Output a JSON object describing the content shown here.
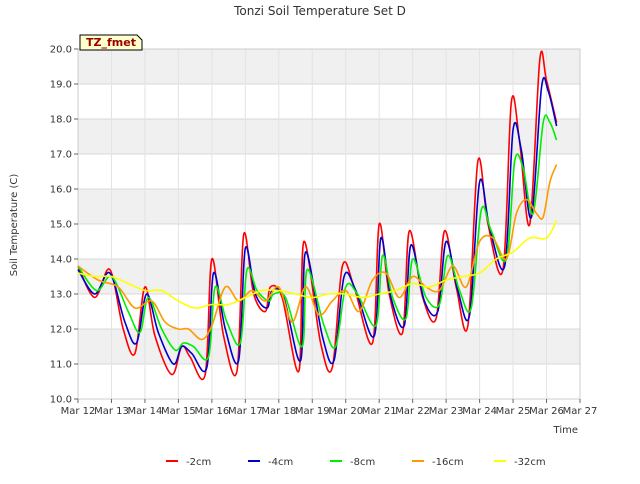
{
  "chart_data": {
    "type": "line",
    "title": "Tonzi Soil Temperature Set D",
    "xlabel": "Time",
    "ylabel": "Soil Temperature (C)",
    "badge": "TZ_fmet",
    "xlim": [
      12,
      27
    ],
    "ylim": [
      10.0,
      20.0
    ],
    "x_ticks": [
      12,
      13,
      14,
      15,
      16,
      17,
      18,
      19,
      20,
      21,
      22,
      23,
      24,
      25,
      26,
      27
    ],
    "x_tick_labels": [
      "Mar 12",
      "Mar 13",
      "Mar 14",
      "Mar 15",
      "Mar 16",
      "Mar 17",
      "Mar 18",
      "Mar 19",
      "Mar 20",
      "Mar 21",
      "Mar 22",
      "Mar 23",
      "Mar 24",
      "Mar 25",
      "Mar 26",
      "Mar 27"
    ],
    "y_ticks": [
      10.0,
      11.0,
      12.0,
      13.0,
      14.0,
      15.0,
      16.0,
      17.0,
      18.0,
      19.0,
      20.0
    ],
    "y_tick_labels": [
      "10.0",
      "11.0",
      "12.0",
      "13.0",
      "14.0",
      "15.0",
      "16.0",
      "17.0",
      "18.0",
      "19.0",
      "20.0"
    ],
    "grid": true,
    "band_shading": "alternating horizontal bands",
    "legend_position": "bottom",
    "series": [
      {
        "name": "-2cm",
        "color": "#ff0000",
        "x": [
          12.0,
          12.5,
          12.95,
          13.35,
          13.7,
          14.0,
          14.3,
          14.8,
          15.1,
          15.35,
          15.8,
          16.0,
          16.35,
          16.75,
          16.95,
          17.25,
          17.6,
          17.75,
          18.1,
          18.6,
          18.75,
          19.25,
          19.6,
          19.9,
          20.25,
          20.8,
          21.0,
          21.3,
          21.7,
          21.9,
          22.3,
          22.7,
          22.95,
          23.3,
          23.65,
          23.95,
          24.25,
          24.7,
          24.95,
          25.2,
          25.5,
          25.8,
          26.0,
          26.3
        ],
        "y": [
          13.8,
          12.9,
          13.7,
          12.0,
          11.3,
          13.2,
          11.8,
          10.7,
          11.5,
          11.2,
          10.7,
          14.0,
          11.8,
          10.8,
          14.7,
          13.0,
          12.5,
          13.2,
          12.9,
          10.8,
          14.5,
          11.6,
          10.9,
          13.8,
          13.2,
          11.6,
          15.0,
          13.0,
          11.9,
          14.8,
          12.9,
          12.3,
          14.8,
          13.2,
          12.1,
          16.8,
          15.0,
          13.7,
          18.5,
          17.3,
          15.0,
          19.7,
          19.1,
          17.9
        ]
      },
      {
        "name": "-4cm",
        "color": "#0000cc",
        "x": [
          12.0,
          12.5,
          12.95,
          13.4,
          13.75,
          14.05,
          14.4,
          14.85,
          15.1,
          15.4,
          15.85,
          16.05,
          16.4,
          16.8,
          17.0,
          17.3,
          17.65,
          17.8,
          18.15,
          18.65,
          18.8,
          19.3,
          19.65,
          19.95,
          20.3,
          20.85,
          21.05,
          21.35,
          21.75,
          21.95,
          22.35,
          22.75,
          23.0,
          23.35,
          23.7,
          24.0,
          24.3,
          24.75,
          25.0,
          25.25,
          25.55,
          25.85,
          26.05,
          26.3
        ],
        "y": [
          13.7,
          13.0,
          13.6,
          12.2,
          11.6,
          13.0,
          11.9,
          11.0,
          11.5,
          11.3,
          10.9,
          13.6,
          12.0,
          11.1,
          14.3,
          13.0,
          12.6,
          13.1,
          12.9,
          11.1,
          14.2,
          11.8,
          11.1,
          13.5,
          13.1,
          11.8,
          14.6,
          12.9,
          12.1,
          14.4,
          12.8,
          12.5,
          14.5,
          13.1,
          12.4,
          16.2,
          14.9,
          13.8,
          17.7,
          17.1,
          15.2,
          18.9,
          18.8,
          17.8
        ]
      },
      {
        "name": "-8cm",
        "color": "#00ee00",
        "x": [
          12.0,
          12.55,
          13.0,
          13.5,
          13.85,
          14.1,
          14.5,
          14.9,
          15.15,
          15.45,
          15.9,
          16.1,
          16.45,
          16.85,
          17.05,
          17.35,
          17.7,
          17.85,
          18.2,
          18.7,
          18.85,
          19.35,
          19.7,
          20.0,
          20.35,
          20.9,
          21.1,
          21.4,
          21.8,
          22.0,
          22.4,
          22.8,
          23.05,
          23.4,
          23.75,
          24.05,
          24.35,
          24.8,
          25.05,
          25.3,
          25.6,
          25.9,
          26.1,
          26.3
        ],
        "y": [
          13.8,
          13.1,
          13.5,
          12.5,
          11.9,
          12.9,
          12.0,
          11.4,
          11.6,
          11.5,
          11.2,
          13.2,
          12.2,
          11.6,
          13.7,
          13.1,
          12.8,
          13.0,
          12.9,
          11.5,
          13.7,
          12.1,
          11.5,
          13.2,
          13.0,
          12.1,
          14.1,
          12.9,
          12.3,
          14.0,
          12.9,
          12.7,
          14.1,
          13.1,
          12.6,
          15.4,
          14.8,
          14.0,
          16.8,
          16.6,
          15.3,
          17.9,
          17.9,
          17.4
        ]
      },
      {
        "name": "-16cm",
        "color": "#ff9900",
        "x": [
          12.0,
          12.6,
          13.2,
          13.7,
          14.2,
          14.6,
          15.0,
          15.3,
          15.7,
          16.0,
          16.4,
          16.8,
          17.2,
          17.6,
          18.0,
          18.4,
          18.8,
          19.2,
          19.6,
          20.0,
          20.4,
          20.8,
          21.2,
          21.6,
          22.0,
          22.4,
          22.8,
          23.2,
          23.6,
          24.0,
          24.4,
          24.8,
          25.1,
          25.4,
          25.7,
          25.9,
          26.1,
          26.3
        ],
        "y": [
          13.8,
          13.4,
          13.2,
          12.6,
          12.8,
          12.2,
          12.0,
          12.0,
          11.7,
          12.1,
          13.2,
          12.8,
          13.1,
          12.8,
          13.2,
          12.2,
          13.2,
          12.4,
          12.8,
          13.1,
          12.5,
          13.4,
          13.6,
          12.9,
          13.5,
          13.2,
          13.1,
          13.8,
          13.2,
          14.5,
          14.6,
          14.0,
          15.3,
          15.7,
          15.3,
          15.2,
          16.2,
          16.7
        ]
      },
      {
        "name": "-32cm",
        "color": "#ffff00",
        "x": [
          12.0,
          12.5,
          13.0,
          13.5,
          14.0,
          14.5,
          15.0,
          15.5,
          16.0,
          16.5,
          17.0,
          17.5,
          18.0,
          18.5,
          19.0,
          19.5,
          20.0,
          20.5,
          21.0,
          21.5,
          22.0,
          22.5,
          23.0,
          23.5,
          24.0,
          24.5,
          25.0,
          25.5,
          26.0,
          26.3
        ],
        "y": [
          13.6,
          13.5,
          13.5,
          13.3,
          13.1,
          13.1,
          12.8,
          12.6,
          12.7,
          12.7,
          12.9,
          13.1,
          13.1,
          13.0,
          12.9,
          13.0,
          13.0,
          12.9,
          13.0,
          13.1,
          13.3,
          13.2,
          13.4,
          13.5,
          13.6,
          14.0,
          14.2,
          14.6,
          14.6,
          15.1
        ]
      }
    ]
  }
}
